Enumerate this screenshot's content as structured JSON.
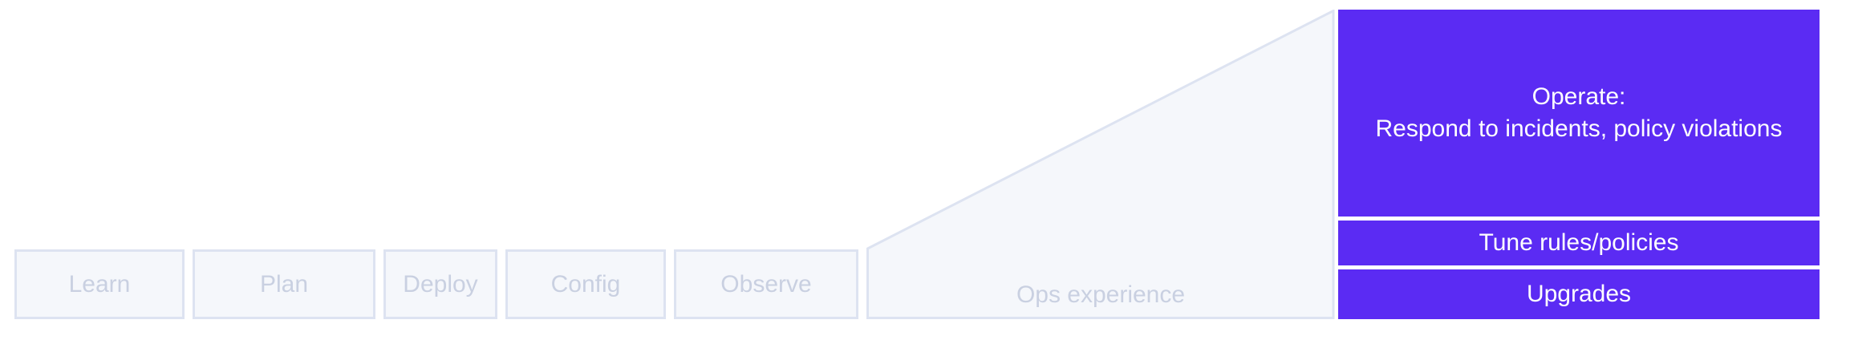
{
  "steps": [
    {
      "label": "Learn"
    },
    {
      "label": "Plan"
    },
    {
      "label": "Deploy"
    },
    {
      "label": "Config"
    },
    {
      "label": "Observe"
    }
  ],
  "ops_experience": {
    "label": "Ops experience"
  },
  "operate": {
    "title": "Operate:",
    "subtitle": "Respond to incidents, policy violations",
    "tune": "Tune rules/policies",
    "upgrades": "Upgrades"
  },
  "colors": {
    "step_fill": "#f5f7fb",
    "step_border": "#dde3f1",
    "step_text": "#c9d0e1",
    "operate_fill": "#5b2bf3",
    "operate_text": "#ffffff"
  }
}
